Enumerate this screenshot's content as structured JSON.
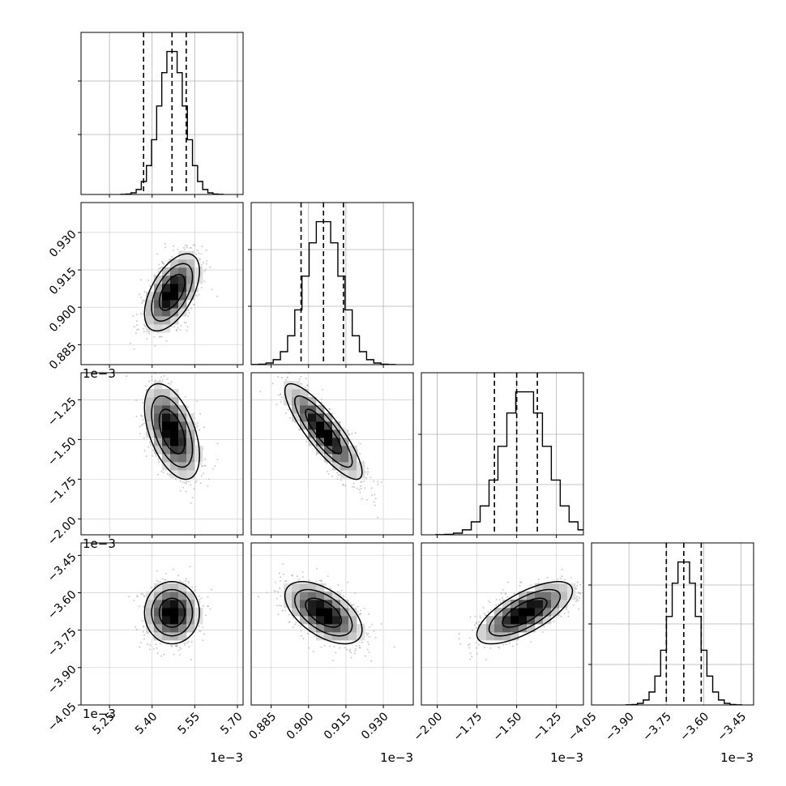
{
  "chart_data": {
    "type": "corner",
    "params": [
      {
        "mean": 5.47,
        "sd": 0.045,
        "ticks": [
          5.25,
          5.4,
          5.55,
          5.7
        ],
        "tick_labels": [
          "5.25",
          "5.40",
          "5.55",
          "5.70"
        ],
        "range": [
          5.15,
          5.72
        ],
        "scale_label": "1e−3",
        "quantiles": [
          5.37,
          5.47,
          5.52
        ]
      },
      {
        "mean": 0.906,
        "sd": 0.0072,
        "ticks": [
          0.885,
          0.9,
          0.915,
          0.93
        ],
        "tick_labels": [
          "0.885",
          "0.900",
          "0.915",
          "0.930"
        ],
        "range": [
          0.877,
          0.942
        ],
        "scale_label": "1e−3",
        "quantiles": [
          0.897,
          0.906,
          0.914
        ]
      },
      {
        "mean": -1.45,
        "sd": 0.14,
        "ticks": [
          -2.0,
          -1.75,
          -1.5,
          -1.25
        ],
        "tick_labels": [
          "−2.00",
          "−1.75",
          "−1.50",
          "−1.25"
        ],
        "range": [
          -2.1,
          -1.08
        ],
        "scale_label": "1e−3",
        "quantiles": [
          -1.64,
          -1.5,
          -1.37
        ]
      },
      {
        "mean": -3.68,
        "sd": 0.058,
        "ticks": [
          -4.05,
          -3.9,
          -3.75,
          -3.6,
          -3.45
        ],
        "tick_labels": [
          "−4.05",
          "−3.90",
          "−3.75",
          "−3.60",
          "−3.45"
        ],
        "range": [
          -4.05,
          -3.4
        ],
        "scale_label": "1e−3",
        "quantiles": [
          -3.75,
          -3.68,
          -3.61
        ]
      }
    ],
    "correlations": [
      [
        1.0,
        0.55,
        -0.5,
        0.0
      ],
      [
        0.55,
        1.0,
        -0.85,
        -0.55
      ],
      [
        -0.5,
        -0.85,
        1.0,
        0.7
      ],
      [
        0.0,
        -0.55,
        0.7,
        1.0
      ]
    ],
    "grid": true
  }
}
